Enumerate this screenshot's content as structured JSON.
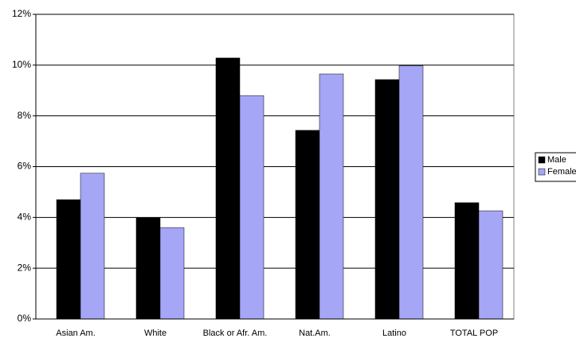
{
  "chart_data": {
    "type": "bar",
    "categories": [
      "Asian Am.",
      "White",
      "Black or Afr. Am.",
      "Nat.Am.",
      "Latino",
      "TOTAL POP"
    ],
    "series": [
      {
        "name": "Male",
        "color": "#000000",
        "values": [
          4.7,
          4.0,
          10.28,
          7.43,
          9.43,
          4.58
        ]
      },
      {
        "name": "Female",
        "color": "#a6a6f6",
        "values": [
          5.74,
          3.6,
          8.8,
          9.65,
          9.97,
          4.26
        ]
      }
    ],
    "ylim": [
      0,
      12
    ],
    "yticks": [
      {
        "value": 0,
        "label": "0%"
      },
      {
        "value": 2,
        "label": "2%"
      },
      {
        "value": 4,
        "label": "4%"
      },
      {
        "value": 6,
        "label": "6%"
      },
      {
        "value": 8,
        "label": "8%"
      },
      {
        "value": 10,
        "label": "10%"
      },
      {
        "value": 12,
        "label": "12%"
      }
    ],
    "grid": true,
    "legend": "right"
  }
}
